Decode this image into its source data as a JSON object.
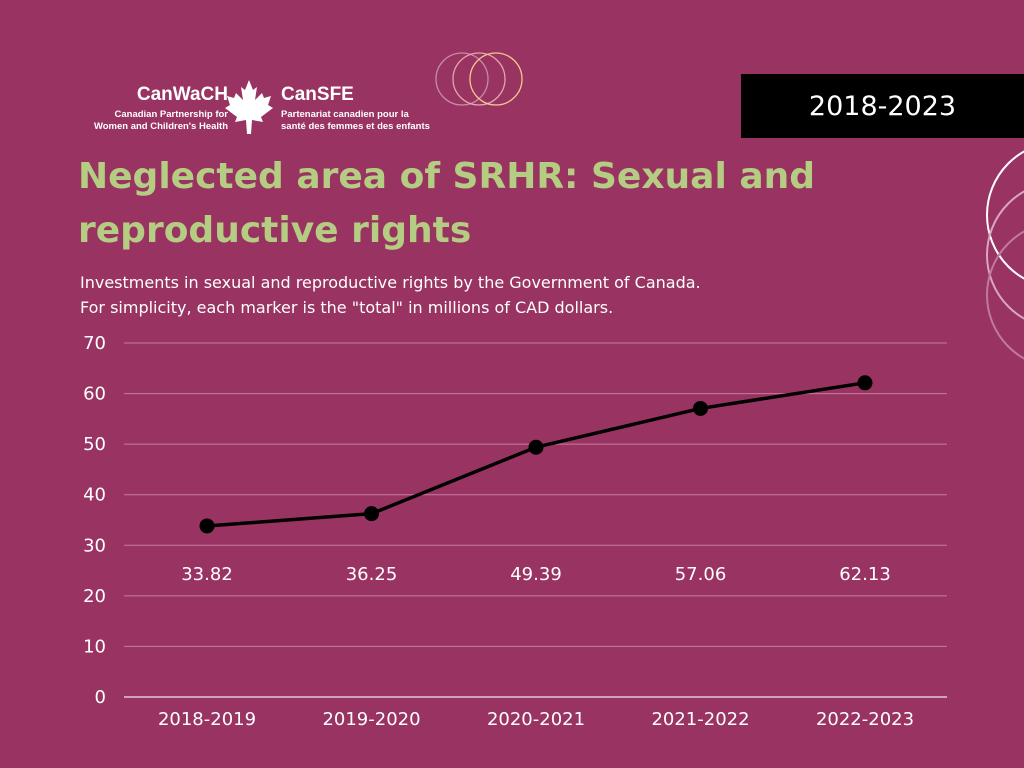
{
  "logo": {
    "en_title": "CanWaCH",
    "en_sub_line1": "Canadian Partnership for",
    "en_sub_line2": "Women and Children's Health",
    "fr_title": "CanSFE",
    "fr_sub_line1": "Partenariat canadien pour la",
    "fr_sub_line2": "santé des femmes et des enfants"
  },
  "year_badge": "2018-2023",
  "title": "Neglected area of SRHR: Sexual and reproductive rights",
  "subtitle_line1": "Investments in sexual and reproductive rights by the Government of Canada.",
  "subtitle_line2": "For simplicity, each marker is the \"total\" in millions of CAD dollars.",
  "colors": {
    "background": "#993362",
    "title": "#b5cd82",
    "line": "#000000",
    "badge": "#000000",
    "grid": "#c77aa0"
  },
  "chart_data": {
    "type": "line",
    "categories": [
      "2018-2019",
      "2019-2020",
      "2020-2021",
      "2021-2022",
      "2022-2023"
    ],
    "values": [
      33.82,
      36.25,
      49.39,
      57.06,
      62.13
    ],
    "data_labels": [
      "33.82",
      "36.25",
      "49.39",
      "57.06",
      "62.13"
    ],
    "yticks": [
      "0",
      "10",
      "20",
      "30",
      "40",
      "50",
      "60",
      "70"
    ],
    "ylim": [
      0,
      70
    ],
    "grid": true,
    "legend": "none",
    "markers": true
  }
}
